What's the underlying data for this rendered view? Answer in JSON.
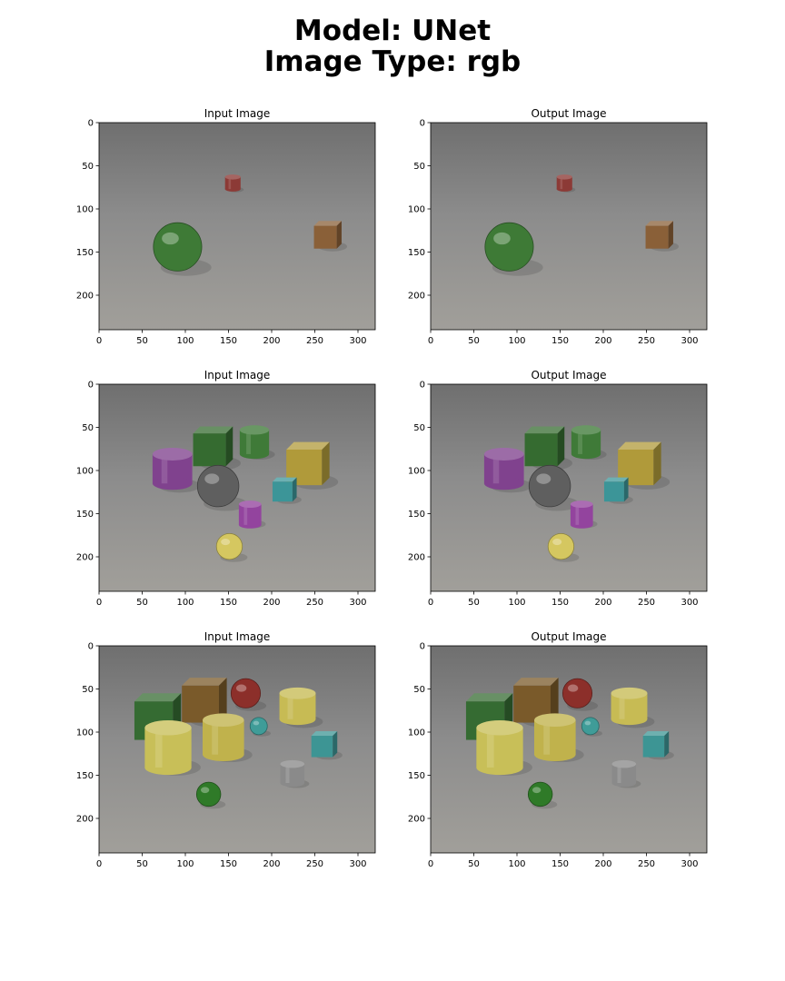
{
  "title_line1": "Model: UNet",
  "title_line2": "Image Type: rgb",
  "chart_data": [
    {
      "type": "image",
      "title": "Input Image",
      "xlim": [
        0,
        320
      ],
      "ylim": [
        240,
        0
      ],
      "xticks": [
        0,
        50,
        100,
        150,
        200,
        250,
        300
      ],
      "yticks": [
        0,
        50,
        100,
        150,
        200
      ],
      "scene": 0
    },
    {
      "type": "image",
      "title": "Output Image",
      "xlim": [
        0,
        320
      ],
      "ylim": [
        240,
        0
      ],
      "xticks": [
        0,
        50,
        100,
        150,
        200,
        250,
        300
      ],
      "yticks": [
        0,
        50,
        100,
        150,
        200
      ],
      "scene": 0
    },
    {
      "type": "image",
      "title": "Input Image",
      "xlim": [
        0,
        320
      ],
      "ylim": [
        240,
        0
      ],
      "xticks": [
        0,
        50,
        100,
        150,
        200,
        250,
        300
      ],
      "yticks": [
        0,
        50,
        100,
        150,
        200
      ],
      "scene": 1
    },
    {
      "type": "image",
      "title": "Output Image",
      "xlim": [
        0,
        320
      ],
      "ylim": [
        240,
        0
      ],
      "xticks": [
        0,
        50,
        100,
        150,
        200,
        250,
        300
      ],
      "yticks": [
        0,
        50,
        100,
        150,
        200
      ],
      "scene": 1
    },
    {
      "type": "image",
      "title": "Input Image",
      "xlim": [
        0,
        320
      ],
      "ylim": [
        240,
        0
      ],
      "xticks": [
        0,
        50,
        100,
        150,
        200,
        250,
        300
      ],
      "yticks": [
        0,
        50,
        100,
        150,
        200
      ],
      "scene": 2
    },
    {
      "type": "image",
      "title": "Output Image",
      "xlim": [
        0,
        320
      ],
      "ylim": [
        240,
        0
      ],
      "xticks": [
        0,
        50,
        100,
        150,
        200,
        250,
        300
      ],
      "yticks": [
        0,
        50,
        100,
        150,
        200
      ],
      "scene": 2
    }
  ],
  "scenes": [
    [
      {
        "shape": "cylinder",
        "color": "#8c3a36",
        "x": 155,
        "y": 70,
        "r": 9,
        "h": 14
      },
      {
        "shape": "cube",
        "color": "#8a6038",
        "x": 265,
        "y": 130,
        "r": 16
      },
      {
        "shape": "sphere",
        "color": "#3e7a36",
        "x": 91,
        "y": 144,
        "r": 28
      }
    ],
    [
      {
        "shape": "cylinder",
        "color": "#3f7a38",
        "x": 180,
        "y": 67,
        "r": 17,
        "h": 28
      },
      {
        "shape": "cube",
        "color": "#356b30",
        "x": 132,
        "y": 72,
        "r": 23
      },
      {
        "shape": "cube",
        "color": "#b09a3a",
        "x": 242,
        "y": 92,
        "r": 25
      },
      {
        "shape": "cylinder",
        "color": "#80428e",
        "x": 85,
        "y": 98,
        "r": 23,
        "h": 34
      },
      {
        "shape": "cube",
        "color": "#3c9598",
        "x": 215,
        "y": 122,
        "r": 14
      },
      {
        "shape": "sphere",
        "color": "#5f5f5f",
        "x": 138,
        "y": 118,
        "r": 24
      },
      {
        "shape": "cylinder",
        "color": "#93449e",
        "x": 175,
        "y": 151,
        "r": 13,
        "h": 24
      },
      {
        "shape": "sphere",
        "color": "#d5c760",
        "x": 151,
        "y": 188,
        "r": 15
      }
    ],
    [
      {
        "shape": "sphere",
        "color": "#8c2f2a",
        "x": 170,
        "y": 55,
        "r": 17
      },
      {
        "shape": "cube",
        "color": "#7a5a2a",
        "x": 122,
        "y": 63,
        "r": 26
      },
      {
        "shape": "cylinder",
        "color": "#c7bb54",
        "x": 230,
        "y": 70,
        "r": 21,
        "h": 30
      },
      {
        "shape": "cube",
        "color": "#356b32",
        "x": 68,
        "y": 82,
        "r": 27
      },
      {
        "shape": "sphere",
        "color": "#3f9c98",
        "x": 185,
        "y": 93,
        "r": 10
      },
      {
        "shape": "cylinder",
        "color": "#c0b24c",
        "x": 144,
        "y": 106,
        "r": 24,
        "h": 40
      },
      {
        "shape": "cube",
        "color": "#3d9594",
        "x": 261,
        "y": 114,
        "r": 15
      },
      {
        "shape": "cylinder",
        "color": "#c8bf58",
        "x": 80,
        "y": 118,
        "r": 27,
        "h": 46
      },
      {
        "shape": "cylinder",
        "color": "#8a8a8a",
        "x": 224,
        "y": 148,
        "r": 14,
        "h": 22
      },
      {
        "shape": "sphere",
        "color": "#2f7a28",
        "x": 127,
        "y": 172,
        "r": 14
      }
    ]
  ],
  "colors": {
    "floor_top": "#6f6f6f",
    "floor_mid": "#8c8c8c",
    "floor_bottom": "#a19f9a"
  }
}
